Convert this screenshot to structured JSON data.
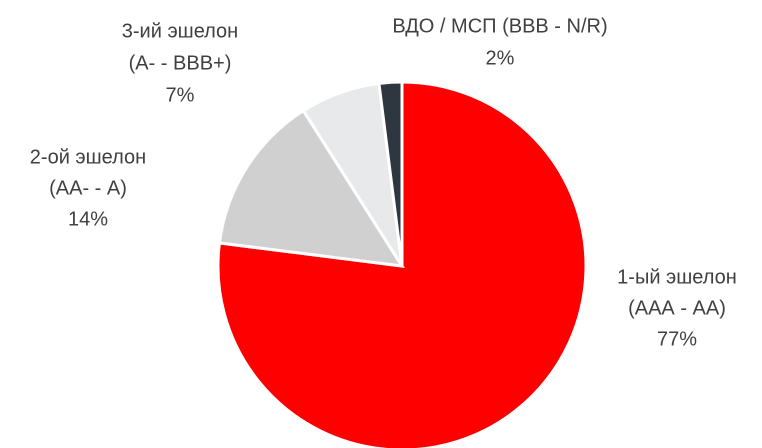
{
  "chart_data": {
    "type": "pie",
    "categories": [
      [
        "1-ый эшелон",
        "(ААА - АА)"
      ],
      [
        "2-ой эшелон",
        "(АА-  -  А)"
      ],
      [
        "3-ий эшелон",
        "(А-  - BBB+)"
      ],
      [
        "ВДО / МСП (BBB  - N/R)"
      ]
    ],
    "values": [
      77,
      14,
      7,
      2
    ],
    "value_labels": [
      "77%",
      "14%",
      "7%",
      "2%"
    ],
    "colors": [
      "#fe0000",
      "#d0d0d0",
      "#e8e9eb",
      "#2e3640"
    ]
  }
}
